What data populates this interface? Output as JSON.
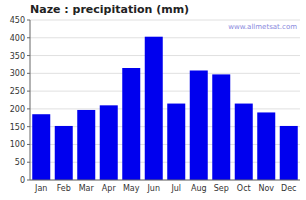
{
  "chart_data": {
    "type": "bar",
    "title": "Naze : precipitation (mm)",
    "categories": [
      "Jan",
      "Feb",
      "Mar",
      "Apr",
      "May",
      "Jun",
      "Jul",
      "Aug",
      "Sep",
      "Oct",
      "Nov",
      "Dec"
    ],
    "values": [
      185,
      152,
      197,
      210,
      315,
      403,
      215,
      308,
      297,
      215,
      190,
      152
    ],
    "color": "#0000EE",
    "ylim": [
      0,
      450
    ],
    "yticks": [
      0,
      50,
      100,
      150,
      200,
      250,
      300,
      350,
      400,
      450
    ],
    "grid": true,
    "annotations": [
      "www.allmetsat.com"
    ]
  }
}
